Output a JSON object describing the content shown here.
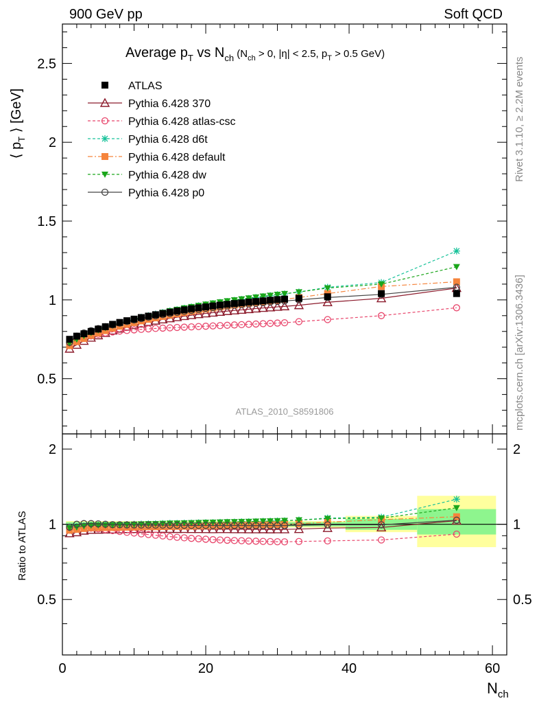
{
  "header": {
    "left": "900 GeV pp",
    "right": "Soft QCD"
  },
  "side_text": {
    "rivet": "Rivet 3.1.10, ≥ 2.2M events",
    "mcplots": "mcplots.cern.ch [arXiv:1306.3436]"
  },
  "title": {
    "main": "Average p",
    "main_sub": "T",
    "main_mid": " vs N",
    "main_sub2": "ch",
    "cond": " (N",
    "cond_sub": "ch",
    "cond_mid": " > 0, |η| < 2.5, p",
    "cond_sub2": "T",
    "cond_end": " > 0.5 GeV)"
  },
  "ylabel_top": {
    "left": "⟨ p",
    "sub": "T",
    "right": " ⟩ [GeV]"
  },
  "ylabel_bottom": "Ratio to ATLAS",
  "xlabel": {
    "main": "N",
    "sub": "ch"
  },
  "analysis_id": "ATLAS_2010_S8591806",
  "colors": {
    "atlas": "#000000",
    "p370": "#8b1a2b",
    "atlascsc": "#e8456b",
    "d6t": "#17c29a",
    "default": "#f5843c",
    "dw": "#1ba61b",
    "p0": "#444444",
    "band_inner": "#8ef58e",
    "band_outer": "#ffff9e"
  },
  "chart_data": {
    "type": "line",
    "xlim": [
      0,
      62
    ],
    "ylim_top": [
      0.15,
      2.75
    ],
    "ylim_bottom": [
      0.3,
      2.3
    ],
    "x_ticks": [
      0,
      20,
      40,
      60
    ],
    "y_ticks_top": [
      0.5,
      1,
      1.5,
      2,
      2.5
    ],
    "y_ticks_bottom": [
      0.5,
      1,
      2
    ],
    "x": [
      1,
      2,
      3,
      4,
      5,
      6,
      7,
      8,
      9,
      10,
      11,
      12,
      13,
      14,
      15,
      16,
      17,
      18,
      19,
      20,
      21,
      22,
      23,
      24,
      25,
      26,
      27,
      28,
      29,
      30,
      31,
      33,
      37,
      44.5,
      55
    ],
    "series": [
      {
        "name": "ATLAS",
        "key": "atlas",
        "marker": "square-filled",
        "line": "none",
        "values": [
          0.75,
          0.77,
          0.785,
          0.8,
          0.815,
          0.83,
          0.845,
          0.857,
          0.868,
          0.878,
          0.888,
          0.897,
          0.906,
          0.914,
          0.922,
          0.93,
          0.937,
          0.944,
          0.95,
          0.956,
          0.962,
          0.967,
          0.972,
          0.977,
          0.981,
          0.986,
          0.99,
          0.994,
          0.998,
          1.002,
          1.005,
          1.01,
          1.02,
          1.04,
          1.04
        ]
      },
      {
        "name": "Pythia 6.428 370",
        "key": "p370",
        "marker": "triangle-open",
        "line": "solid",
        "values": [
          0.69,
          0.715,
          0.74,
          0.76,
          0.775,
          0.79,
          0.805,
          0.818,
          0.83,
          0.84,
          0.85,
          0.86,
          0.868,
          0.876,
          0.883,
          0.89,
          0.897,
          0.903,
          0.909,
          0.914,
          0.919,
          0.924,
          0.929,
          0.933,
          0.937,
          0.941,
          0.945,
          0.949,
          0.952,
          0.956,
          0.959,
          0.966,
          0.985,
          1.01,
          1.075
        ]
      },
      {
        "name": "Pythia 6.428 atlas-csc",
        "key": "atlascsc",
        "marker": "circle-open",
        "line": "dashed",
        "values": [
          0.72,
          0.745,
          0.76,
          0.772,
          0.782,
          0.79,
          0.797,
          0.802,
          0.806,
          0.81,
          0.813,
          0.816,
          0.819,
          0.821,
          0.823,
          0.825,
          0.827,
          0.829,
          0.831,
          0.833,
          0.835,
          0.837,
          0.839,
          0.841,
          0.843,
          0.845,
          0.847,
          0.849,
          0.851,
          0.853,
          0.855,
          0.862,
          0.875,
          0.9,
          0.95
        ]
      },
      {
        "name": "Pythia 6.428 d6t",
        "key": "d6t",
        "marker": "star",
        "line": "dashed",
        "values": [
          0.73,
          0.755,
          0.775,
          0.795,
          0.81,
          0.825,
          0.84,
          0.853,
          0.866,
          0.878,
          0.89,
          0.9,
          0.91,
          0.92,
          0.93,
          0.938,
          0.947,
          0.955,
          0.963,
          0.97,
          0.977,
          0.984,
          0.99,
          0.997,
          1.003,
          1.009,
          1.015,
          1.021,
          1.027,
          1.033,
          1.038,
          1.05,
          1.08,
          1.11,
          1.31
        ]
      },
      {
        "name": "Pythia 6.428 default",
        "key": "default",
        "marker": "square-filled",
        "line": "dashdot",
        "values": [
          0.71,
          0.735,
          0.755,
          0.775,
          0.79,
          0.805,
          0.82,
          0.833,
          0.845,
          0.856,
          0.867,
          0.877,
          0.886,
          0.895,
          0.904,
          0.912,
          0.92,
          0.928,
          0.935,
          0.942,
          0.949,
          0.955,
          0.961,
          0.967,
          0.973,
          0.979,
          0.984,
          0.989,
          0.994,
          0.999,
          1.004,
          1.015,
          1.04,
          1.085,
          1.115
        ]
      },
      {
        "name": "Pythia 6.428 dw",
        "key": "dw",
        "marker": "triangle-down-filled",
        "line": "dashed",
        "values": [
          0.725,
          0.75,
          0.772,
          0.792,
          0.808,
          0.823,
          0.838,
          0.852,
          0.865,
          0.877,
          0.889,
          0.9,
          0.91,
          0.92,
          0.93,
          0.939,
          0.948,
          0.956,
          0.964,
          0.972,
          0.979,
          0.986,
          0.993,
          0.999,
          1.005,
          1.011,
          1.017,
          1.023,
          1.028,
          1.034,
          1.039,
          1.05,
          1.075,
          1.1,
          1.21
        ]
      },
      {
        "name": "Pythia 6.428 p0",
        "key": "p0",
        "marker": "circle-open",
        "line": "solid",
        "values": [
          0.73,
          0.77,
          0.79,
          0.805,
          0.818,
          0.83,
          0.842,
          0.853,
          0.863,
          0.873,
          0.882,
          0.891,
          0.899,
          0.907,
          0.914,
          0.921,
          0.928,
          0.934,
          0.94,
          0.946,
          0.951,
          0.956,
          0.961,
          0.966,
          0.97,
          0.974,
          0.978,
          0.982,
          0.986,
          0.99,
          0.993,
          1.0,
          1.015,
          1.035,
          1.08
        ]
      }
    ],
    "ratio_bands": [
      {
        "x": [
          0.5,
          39.5
        ],
        "inner": [
          0.98,
          1.02
        ],
        "outer": [
          0.97,
          1.03
        ]
      },
      {
        "x": [
          39.5,
          49.5
        ],
        "inner": [
          0.95,
          1.05
        ],
        "outer": [
          0.93,
          1.08
        ]
      },
      {
        "x": [
          49.5,
          60.5
        ],
        "inner": [
          0.91,
          1.15
        ],
        "outer": [
          0.81,
          1.3
        ]
      }
    ]
  }
}
